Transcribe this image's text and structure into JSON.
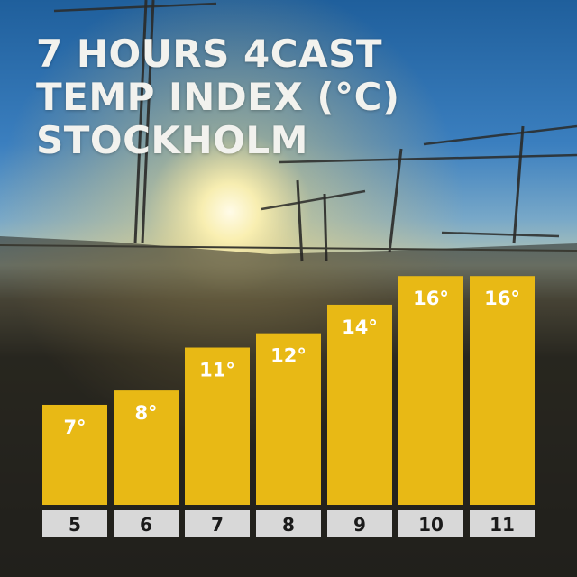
{
  "title_lines": [
    "7 HOURS 4CAST",
    "TEMP INDEX (°C)",
    "STOCKHOLM"
  ],
  "colors": {
    "bar": "#E8B915",
    "tick_box": "#D8D8D8"
  },
  "chart_data": {
    "type": "bar",
    "categories": [
      "5",
      "6",
      "7",
      "8",
      "9",
      "10",
      "11"
    ],
    "values": [
      7,
      8,
      11,
      12,
      14,
      16,
      16
    ],
    "data_labels": [
      "7°",
      "8°",
      "11°",
      "12°",
      "14°",
      "16°",
      "16°"
    ],
    "title": "7 HOURS 4CAST TEMP INDEX (°C) STOCKHOLM",
    "xlabel": "",
    "ylabel": "",
    "ylim": [
      0,
      17.4
    ],
    "grid": false,
    "legend": "none"
  }
}
